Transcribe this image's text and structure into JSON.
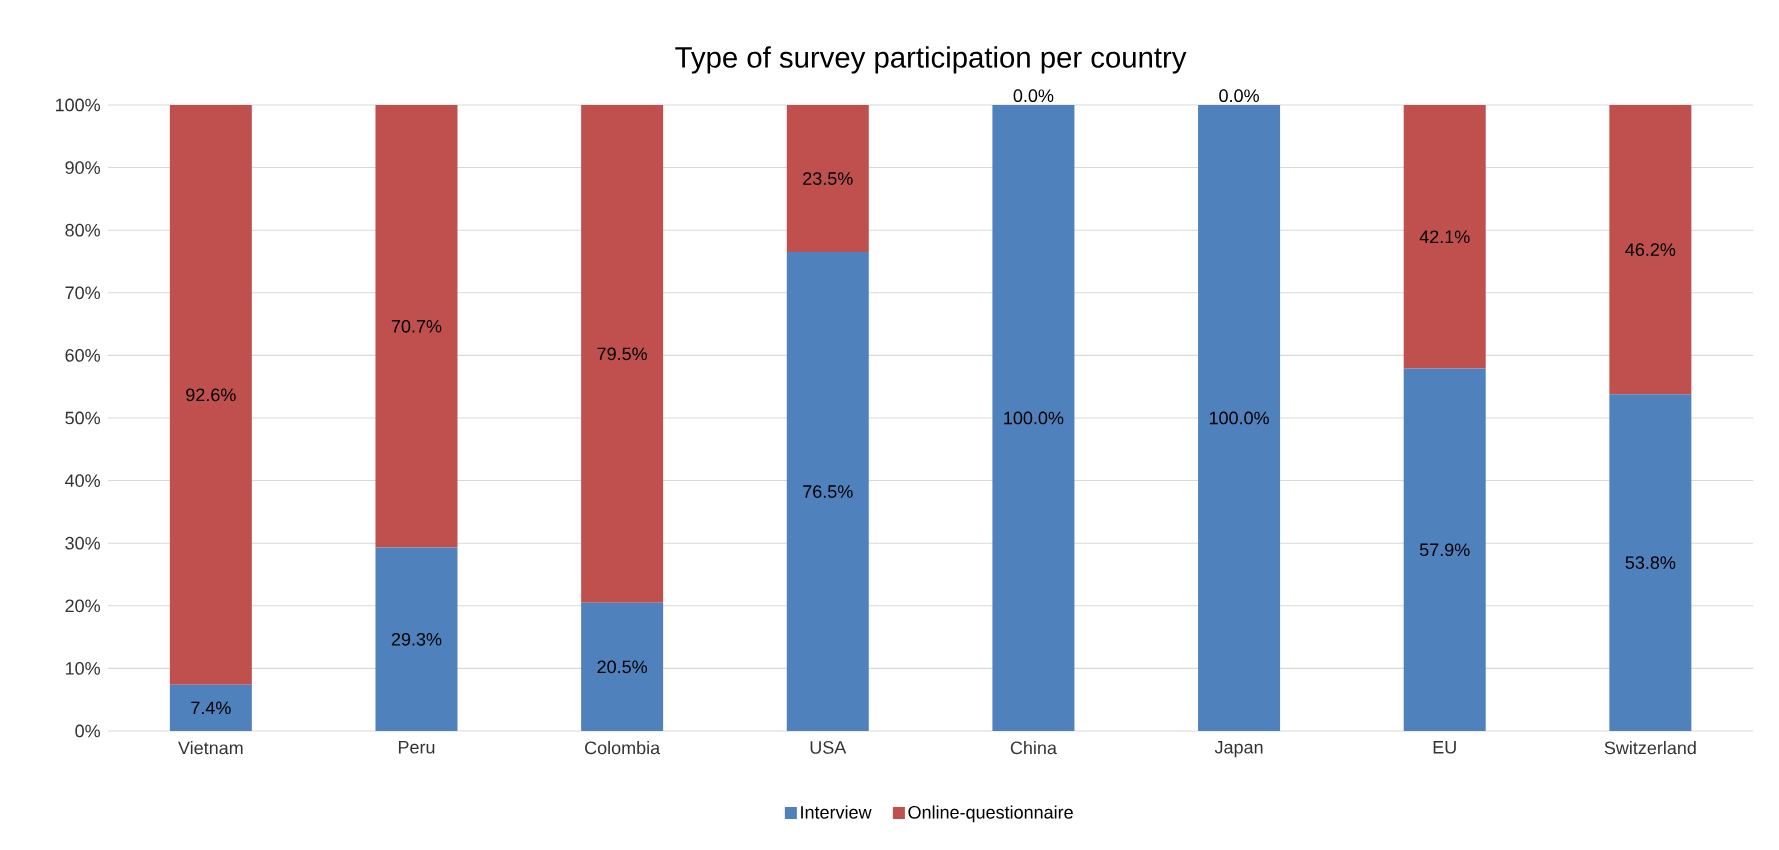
{
  "chart_data": {
    "type": "bar",
    "title": "Type of survey participation per country",
    "stacked": true,
    "categories": [
      "Vietnam",
      "Peru",
      "Colombia",
      "USA",
      "China",
      "Japan",
      "EU",
      "Switzerland"
    ],
    "series": [
      {
        "name": "Interview",
        "color": "#4f81bd",
        "values": [
          7.4,
          29.3,
          20.5,
          76.5,
          100.0,
          100.0,
          57.9,
          53.8
        ],
        "value_labels": [
          "7.4%",
          "29.3%",
          "20.5%",
          "76.5%",
          "100.0%",
          "100.0%",
          "57.9%",
          "53.8%"
        ]
      },
      {
        "name": "Online-questionnaire",
        "color": "#c0504d",
        "values": [
          92.6,
          70.7,
          79.5,
          23.5,
          0.0,
          0.0,
          42.1,
          46.2
        ],
        "value_labels": [
          "92.6%",
          "70.7%",
          "79.5%",
          "23.5%",
          "0.0%",
          "0.0%",
          "42.1%",
          "46.2%"
        ]
      }
    ],
    "ylim": [
      0,
      100
    ],
    "yticks": [
      {
        "value": 0,
        "label": "0%"
      },
      {
        "value": 10,
        "label": "10%"
      },
      {
        "value": 20,
        "label": "20%"
      },
      {
        "value": 30,
        "label": "30%"
      },
      {
        "value": 40,
        "label": "40%"
      },
      {
        "value": 50,
        "label": "50%"
      },
      {
        "value": 60,
        "label": "60%"
      },
      {
        "value": 70,
        "label": "70%"
      },
      {
        "value": 80,
        "label": "80%"
      },
      {
        "value": 90,
        "label": "90%"
      },
      {
        "value": 100,
        "label": "100%"
      }
    ],
    "grid": "y",
    "legend": "bottom"
  }
}
